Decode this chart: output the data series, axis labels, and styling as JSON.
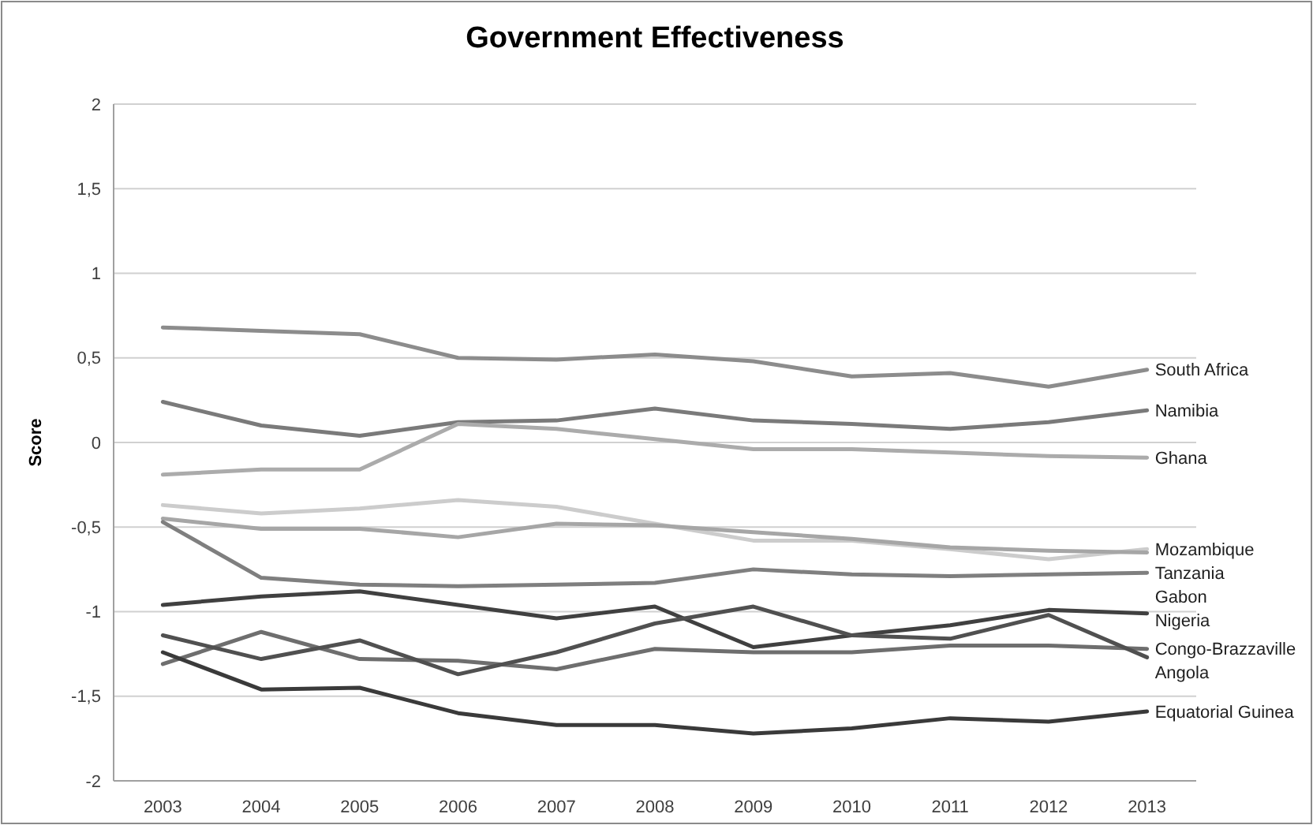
{
  "chart_data": {
    "type": "line",
    "title": "Government Effectiveness",
    "ylabel": "Score",
    "categories": [
      "2003",
      "2004",
      "2005",
      "2006",
      "2007",
      "2008",
      "2009",
      "2010",
      "2011",
      "2012",
      "2013"
    ],
    "ylim": [
      -2,
      2
    ],
    "yticks": [
      -2,
      {
        "value": -1.5,
        "label": "-1,5"
      },
      -1,
      {
        "value": -0.5,
        "label": "-0,5"
      },
      0,
      {
        "value": 0.5,
        "label": "0,5"
      },
      1,
      {
        "value": 1.5,
        "label": "1,5"
      },
      2
    ],
    "grid": "y",
    "marker": "none",
    "line_style": "solid",
    "series": [
      {
        "name": "South Africa",
        "color": "#8c8c8c",
        "values": [
          0.68,
          0.66,
          0.64,
          0.5,
          0.49,
          0.52,
          0.48,
          0.39,
          0.41,
          0.33,
          0.43
        ]
      },
      {
        "name": "Namibia",
        "color": "#7a7a7a",
        "values": [
          0.24,
          0.1,
          0.04,
          0.12,
          0.13,
          0.2,
          0.13,
          0.11,
          0.08,
          0.12,
          0.19
        ]
      },
      {
        "name": "Ghana",
        "color": "#ababab",
        "values": [
          -0.19,
          -0.16,
          -0.16,
          0.11,
          0.08,
          0.02,
          -0.04,
          -0.04,
          -0.06,
          -0.08,
          -0.09
        ]
      },
      {
        "name": "Mozambique",
        "color": "#cccccc",
        "values": [
          -0.37,
          -0.42,
          -0.39,
          -0.34,
          -0.38,
          -0.48,
          -0.58,
          -0.58,
          -0.63,
          -0.69,
          -0.63
        ]
      },
      {
        "name": "Tanzania",
        "color": "#a6a6a6",
        "values": [
          -0.45,
          -0.51,
          -0.51,
          -0.56,
          -0.48,
          -0.49,
          -0.53,
          -0.57,
          -0.62,
          -0.64,
          -0.65
        ]
      },
      {
        "name": "Gabon",
        "color": "#7f7f7f",
        "values": [
          -0.47,
          -0.8,
          -0.84,
          -0.85,
          -0.84,
          -0.83,
          -0.75,
          -0.78,
          -0.79,
          -0.78,
          -0.77
        ]
      },
      {
        "name": "Nigeria",
        "color": "#404040",
        "values": [
          -0.96,
          -0.91,
          -0.88,
          -0.96,
          -1.04,
          -0.97,
          -1.21,
          -1.14,
          -1.08,
          -0.99,
          -1.01
        ]
      },
      {
        "name": "Congo-Brazzaville",
        "color": "#6e6e6e",
        "values": [
          -1.31,
          -1.12,
          -1.28,
          -1.29,
          -1.34,
          -1.22,
          -1.24,
          -1.24,
          -1.2,
          -1.2,
          -1.22
        ]
      },
      {
        "name": "Angola",
        "color": "#505050",
        "values": [
          -1.14,
          -1.28,
          -1.17,
          -1.37,
          -1.24,
          -1.07,
          -0.97,
          -1.14,
          -1.16,
          -1.02,
          -1.27
        ]
      },
      {
        "name": "Equatorial Guinea",
        "color": "#3a3a3a",
        "values": [
          -1.24,
          -1.46,
          -1.45,
          -1.6,
          -1.67,
          -1.67,
          -1.72,
          -1.69,
          -1.63,
          -1.65,
          -1.59
        ]
      }
    ]
  }
}
